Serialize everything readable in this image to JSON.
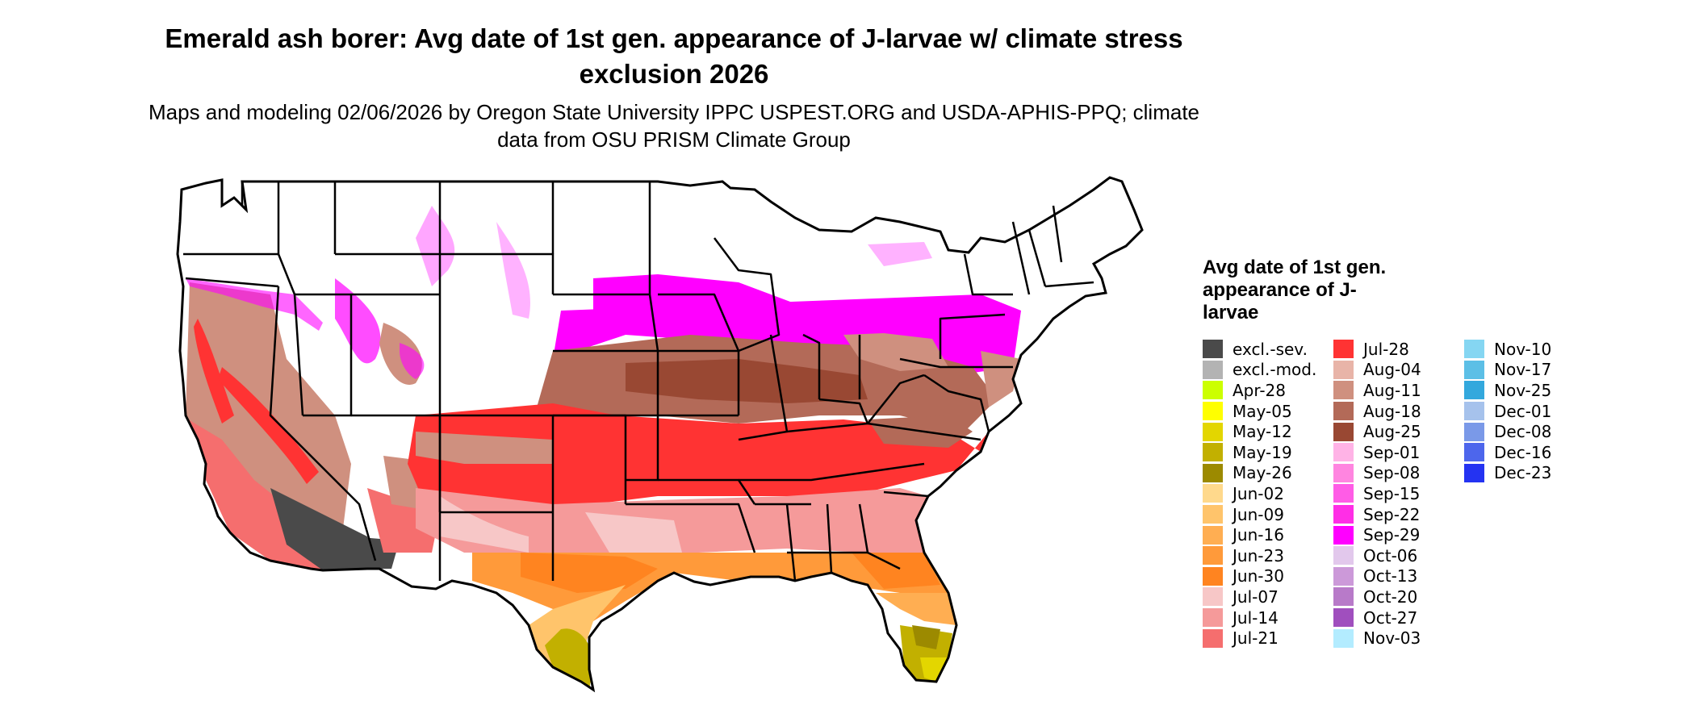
{
  "title": "Emerald ash borer: Avg date of 1st gen. appearance of J-larvae w/ climate stress exclusion 2026",
  "subtitle": "Maps and modeling 02/06/2026 by Oregon State University IPPC USPEST.ORG and USDA-APHIS-PPQ; climate data from OSU PRISM Climate Group",
  "legend": {
    "title": "Avg date of 1st gen. appearance of J-larvae",
    "columns": [
      [
        {
          "label": "excl.-sev.",
          "color": "#4a4a4a"
        },
        {
          "label": "excl.-mod.",
          "color": "#b3b3b3"
        },
        {
          "label": "Apr-28",
          "color": "#ccff00"
        },
        {
          "label": "May-05",
          "color": "#ffff00"
        },
        {
          "label": "May-12",
          "color": "#e3d600"
        },
        {
          "label": "May-19",
          "color": "#c2b000"
        },
        {
          "label": "May-26",
          "color": "#9c8a00"
        },
        {
          "label": "Jun-02",
          "color": "#ffd98c"
        },
        {
          "label": "Jun-09",
          "color": "#ffc46b"
        },
        {
          "label": "Jun-16",
          "color": "#ffae52"
        },
        {
          "label": "Jun-23",
          "color": "#ff9a3a"
        },
        {
          "label": "Jun-30",
          "color": "#ff8420"
        },
        {
          "label": "Jul-07",
          "color": "#f7c7c7"
        },
        {
          "label": "Jul-14",
          "color": "#f59a9a"
        },
        {
          "label": "Jul-21",
          "color": "#f56e6e"
        }
      ],
      [
        {
          "label": "Jul-28",
          "color": "#ff3333"
        },
        {
          "label": "Aug-04",
          "color": "#e8b4a8"
        },
        {
          "label": "Aug-11",
          "color": "#cf907f"
        },
        {
          "label": "Aug-18",
          "color": "#b36a58"
        },
        {
          "label": "Aug-25",
          "color": "#994833"
        },
        {
          "label": "Sep-01",
          "color": "#ffb3e6"
        },
        {
          "label": "Sep-08",
          "color": "#ff85e0"
        },
        {
          "label": "Sep-15",
          "color": "#ff5ce6"
        },
        {
          "label": "Sep-22",
          "color": "#ff2ee6"
        },
        {
          "label": "Sep-29",
          "color": "#ff00ff"
        },
        {
          "label": "Oct-06",
          "color": "#e2c8ec"
        },
        {
          "label": "Oct-13",
          "color": "#cc99d9"
        },
        {
          "label": "Oct-20",
          "color": "#b87ac9"
        },
        {
          "label": "Oct-27",
          "color": "#a04fbe"
        },
        {
          "label": "Nov-03",
          "color": "#b3ecff"
        }
      ],
      [
        {
          "label": "Nov-10",
          "color": "#85d6f2"
        },
        {
          "label": "Nov-17",
          "color": "#5cbfe6"
        },
        {
          "label": "Nov-25",
          "color": "#33a8dd"
        },
        {
          "label": "Dec-01",
          "color": "#a6c2ec"
        },
        {
          "label": "Dec-08",
          "color": "#7a99e8"
        },
        {
          "label": "Dec-16",
          "color": "#4d66ec"
        },
        {
          "label": "Dec-23",
          "color": "#2433f2"
        }
      ]
    ]
  }
}
